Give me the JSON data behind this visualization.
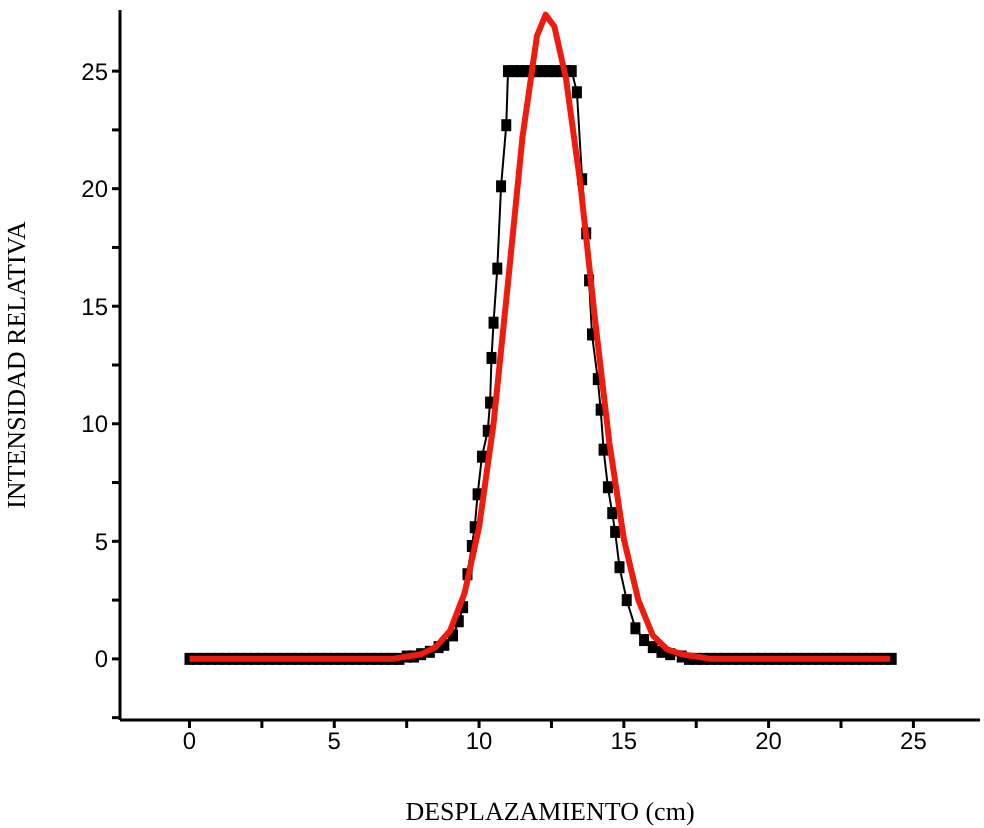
{
  "chart_data": {
    "type": "line",
    "xlabel": "DESPLAZAMIENTO (cm)",
    "ylabel": "INTENSIDAD  RELATIVA",
    "xlim": [
      -2.4,
      27.3
    ],
    "ylim": [
      -2.6,
      27.6
    ],
    "xticks": [
      0,
      {
        "value": 2.5,
        "label": null
      },
      5,
      {
        "value": 7.5,
        "label": null
      },
      10,
      {
        "value": 12.5,
        "label": null
      },
      15,
      {
        "value": 17.5,
        "label": null
      },
      20,
      {
        "value": 22.5,
        "label": null
      },
      25
    ],
    "yticks": [
      {
        "value": -2.5,
        "label": null
      },
      0,
      {
        "value": 2.5,
        "label": null
      },
      5,
      {
        "value": 7.5,
        "label": null
      },
      10,
      {
        "value": 12.5,
        "label": null
      },
      15,
      {
        "value": 17.5,
        "label": null
      },
      20,
      {
        "value": 22.5,
        "label": null
      },
      25
    ],
    "line_style": "solid",
    "series": [
      {
        "color": "#000000",
        "marker": "square",
        "x": [
          0,
          0.25,
          0.5,
          0.75,
          1,
          1.25,
          1.5,
          1.75,
          2,
          2.25,
          2.5,
          2.75,
          3,
          3.25,
          3.5,
          3.75,
          4,
          4.25,
          4.5,
          4.75,
          5,
          5.25,
          5.5,
          5.75,
          6,
          6.25,
          6.5,
          6.75,
          7,
          7.25,
          7.5,
          7.75,
          8,
          8.3,
          8.6,
          8.8,
          9.1,
          9.3,
          9.45,
          9.6,
          9.75,
          9.85,
          9.95,
          10.1,
          10.3,
          10.38,
          10.43,
          10.5,
          10.63,
          10.76,
          10.94,
          11.0,
          11.2,
          11.4,
          11.6,
          11.8,
          12.0,
          12.2,
          12.4,
          12.6,
          12.8,
          13.0,
          13.2,
          13.38,
          13.56,
          13.7,
          13.8,
          13.9,
          14.1,
          14.2,
          14.3,
          14.45,
          14.6,
          14.7,
          14.85,
          15.1,
          15.4,
          15.7,
          16.0,
          16.3,
          16.6,
          17.0,
          17.25,
          17.5,
          17.75,
          18,
          18.25,
          18.5,
          18.75,
          19,
          19.25,
          19.5,
          19.75,
          20,
          20.25,
          20.5,
          20.75,
          21,
          21.25,
          21.5,
          21.75,
          22,
          22.25,
          22.5,
          22.75,
          23,
          23.25,
          23.5,
          23.75,
          24,
          24.25
        ],
        "values": [
          0,
          0,
          0,
          0,
          0,
          0,
          0,
          0,
          0,
          0,
          0,
          0,
          0,
          0,
          0,
          0,
          0,
          0,
          0,
          0,
          0,
          0,
          0,
          0,
          0,
          0,
          0,
          0,
          0,
          0,
          0.1,
          0.1,
          0.2,
          0.3,
          0.5,
          0.6,
          1.0,
          1.6,
          2.2,
          3.6,
          4.8,
          5.6,
          7.0,
          8.6,
          9.7,
          10.9,
          12.8,
          14.3,
          16.6,
          20.1,
          22.7,
          25,
          25,
          25,
          25,
          25,
          25,
          25,
          25,
          25,
          25,
          25,
          25,
          24.1,
          20.4,
          18.1,
          16.1,
          13.8,
          11.9,
          10.6,
          8.9,
          7.3,
          6.2,
          5.4,
          3.9,
          2.5,
          1.3,
          0.8,
          0.5,
          0.3,
          0.2,
          0.1,
          0,
          0,
          0,
          0,
          0,
          0,
          0,
          0,
          0,
          0,
          0,
          0,
          0,
          0,
          0,
          0,
          0,
          0,
          0,
          0,
          0,
          0,
          0,
          0,
          0,
          0,
          0,
          0,
          0
        ]
      },
      {
        "color": "#ee1c0e",
        "marker": "none",
        "x": [
          0,
          7,
          8,
          8.5,
          9,
          9.5,
          10,
          10.5,
          11,
          11.5,
          12,
          12.3,
          12.6,
          13,
          13.5,
          14,
          14.5,
          15,
          15.5,
          16,
          16.5,
          17,
          18,
          24.2
        ],
        "values": [
          0,
          0,
          0.2,
          0.5,
          1.2,
          2.8,
          5.6,
          10,
          16,
          22.2,
          26.5,
          27.4,
          26.9,
          24.7,
          20.2,
          14.5,
          9.2,
          5.1,
          2.5,
          1.0,
          0.4,
          0.2,
          0,
          0
        ]
      }
    ]
  }
}
